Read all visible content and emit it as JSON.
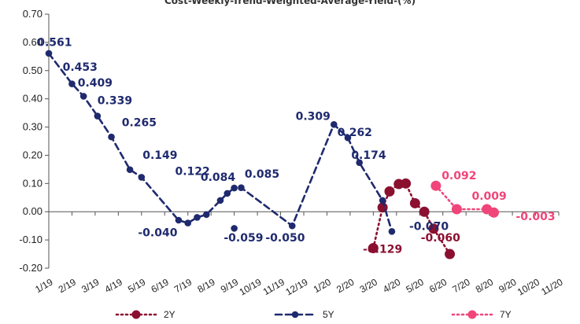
{
  "chart_data": {
    "type": "line",
    "title": "Cost-Weekly-Trend-Weighted-Average-Yield-(%)",
    "categories": [
      "1/19",
      "2/19",
      "3/19",
      "4/19",
      "5/19",
      "6/19",
      "7/19",
      "8/19",
      "9/19",
      "10/19",
      "11/19",
      "12/19",
      "1/20",
      "2/20",
      "3/20",
      "4/20",
      "5/20",
      "6/20",
      "7/20",
      "8/20",
      "9/20",
      "10/20",
      "11/20"
    ],
    "ylim": [
      -0.2,
      0.7
    ],
    "yticks": [
      "-0.20",
      "-0.10",
      "0.00",
      "0.10",
      "0.20",
      "0.30",
      "0.40",
      "0.50",
      "0.60",
      "0.70"
    ],
    "legend_position": "bottom",
    "series": [
      {
        "name": "2Y",
        "color": "#8B1030",
        "style": "dotted",
        "points": [
          {
            "x": 14.0,
            "y": -0.129
          },
          {
            "x": 14.4,
            "y": 0.015
          },
          {
            "x": 14.7,
            "y": 0.072
          },
          {
            "x": 15.1,
            "y": 0.098
          },
          {
            "x": 15.4,
            "y": 0.1
          },
          {
            "x": 15.8,
            "y": 0.03
          },
          {
            "x": 16.2,
            "y": 0.0
          },
          {
            "x": 16.6,
            "y": -0.06
          },
          {
            "x": 17.3,
            "y": -0.15
          }
        ],
        "labels": [
          {
            "text": "-0.129",
            "x": 14.4,
            "y": -0.145
          },
          {
            "text": "-0.060",
            "x": 16.9,
            "y": -0.105
          }
        ]
      },
      {
        "name": "5Y",
        "color": "#1F2A6E",
        "style": "dashed",
        "points": [
          {
            "x": 0.0,
            "y": 0.561
          },
          {
            "x": 1.0,
            "y": 0.453
          },
          {
            "x": 1.5,
            "y": 0.409
          },
          {
            "x": 2.1,
            "y": 0.339
          },
          {
            "x": 2.7,
            "y": 0.265
          },
          {
            "x": 3.5,
            "y": 0.149
          },
          {
            "x": 4.0,
            "y": 0.122
          },
          {
            "x": 5.6,
            "y": -0.03
          },
          {
            "x": 6.0,
            "y": -0.04
          },
          {
            "x": 6.4,
            "y": -0.02
          },
          {
            "x": 6.8,
            "y": -0.01
          },
          {
            "x": 7.4,
            "y": 0.04
          },
          {
            "x": 7.7,
            "y": 0.065
          },
          {
            "x": 8.0,
            "y": 0.084
          },
          {
            "x": 8.3,
            "y": 0.085
          },
          {
            "x": 10.5,
            "y": -0.05
          },
          {
            "x": 12.3,
            "y": 0.309
          },
          {
            "x": 12.9,
            "y": 0.262
          },
          {
            "x": 13.4,
            "y": 0.174
          },
          {
            "x": 14.4,
            "y": 0.04
          },
          {
            "x": 14.8,
            "y": -0.07
          }
        ],
        "extra_points": [
          {
            "x": 8.0,
            "y": -0.059
          }
        ],
        "labels": [
          {
            "text": "0.561",
            "x": 0.25,
            "y": 0.587
          },
          {
            "text": "0.453",
            "x": 1.35,
            "y": 0.499
          },
          {
            "text": "0.409",
            "x": 2.0,
            "y": 0.444
          },
          {
            "text": "0.339",
            "x": 2.85,
            "y": 0.381
          },
          {
            "text": "0.265",
            "x": 3.9,
            "y": 0.303
          },
          {
            "text": "0.149",
            "x": 4.8,
            "y": 0.188
          },
          {
            "text": "0.122",
            "x": 6.2,
            "y": 0.13
          },
          {
            "text": "0.084",
            "x": 7.3,
            "y": 0.109
          },
          {
            "text": "0.085",
            "x": 9.2,
            "y": 0.12
          },
          {
            "text": "-0.040",
            "x": 4.7,
            "y": -0.087
          },
          {
            "text": "-0.059",
            "x": 8.4,
            "y": -0.105
          },
          {
            "text": "-0.050",
            "x": 10.2,
            "y": -0.105
          },
          {
            "text": "0.309",
            "x": 11.4,
            "y": 0.325
          },
          {
            "text": "0.262",
            "x": 13.2,
            "y": 0.268
          },
          {
            "text": "0.174",
            "x": 13.8,
            "y": 0.187
          },
          {
            "text": "-0.070",
            "x": 16.4,
            "y": -0.065
          }
        ]
      },
      {
        "name": "7Y",
        "color": "#F0457A",
        "style": "dotted",
        "points": [
          {
            "x": 16.7,
            "y": 0.092
          },
          {
            "x": 17.6,
            "y": 0.009
          },
          {
            "x": 18.9,
            "y": 0.009
          },
          {
            "x": 19.2,
            "y": -0.003
          }
        ],
        "labels": [
          {
            "text": "0.092",
            "x": 17.7,
            "y": 0.115
          },
          {
            "text": "0.009",
            "x": 19.0,
            "y": 0.043
          },
          {
            "text": "-0.003",
            "x": 21.0,
            "y": -0.03
          }
        ]
      }
    ]
  }
}
